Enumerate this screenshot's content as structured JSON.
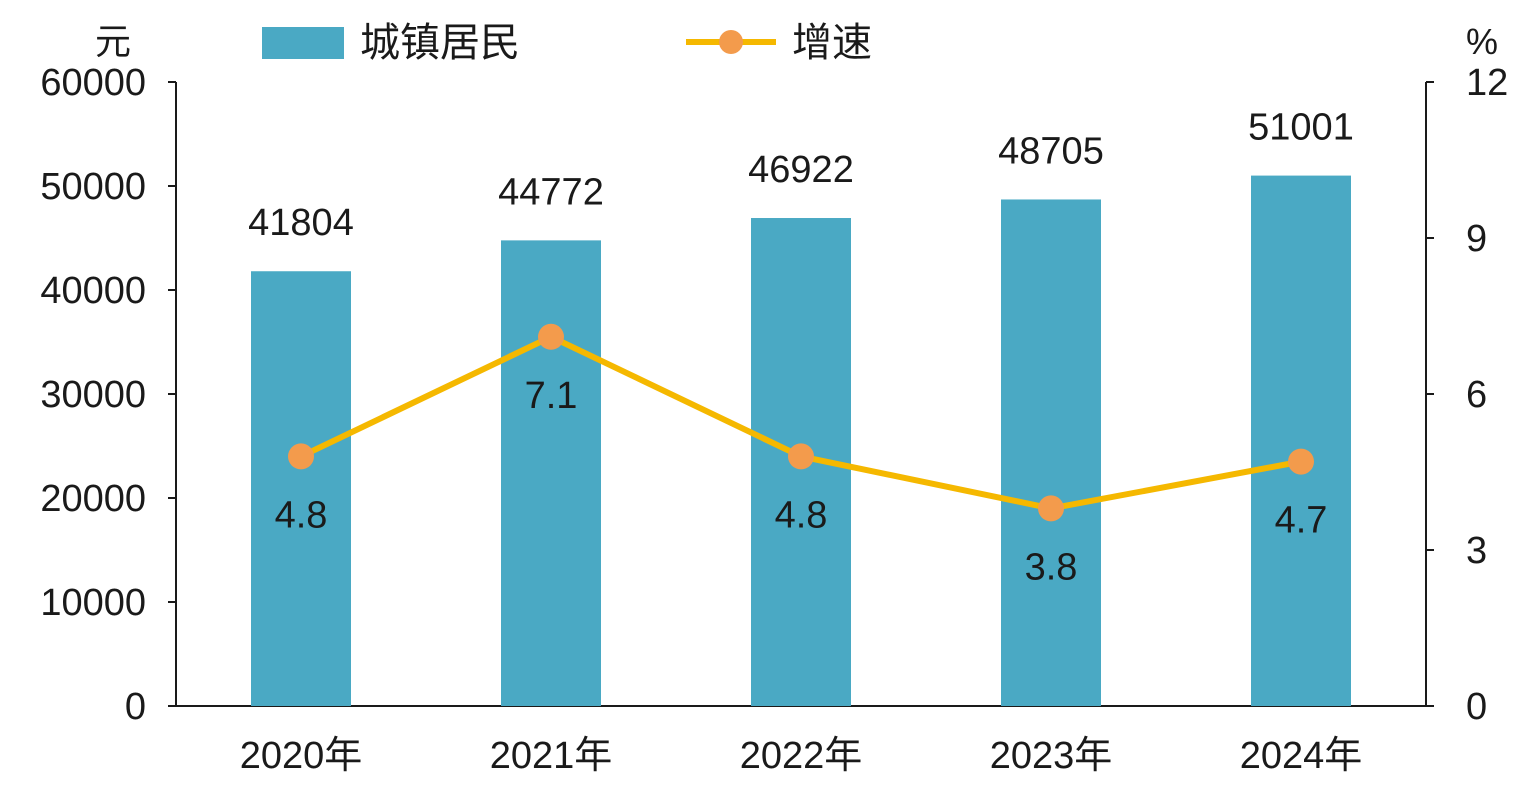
{
  "chart_data": {
    "type": "bar",
    "title": "",
    "categories": [
      "2020年",
      "2021年",
      "2022年",
      "2023年",
      "2024年"
    ],
    "series": [
      {
        "name": "城镇居民",
        "type": "bar",
        "axis": "left",
        "color": "#4aa9c4",
        "values": [
          41804,
          44772,
          46922,
          48705,
          51001
        ],
        "labels": [
          "41804",
          "44772",
          "46922",
          "48705",
          "51001"
        ]
      },
      {
        "name": "增速",
        "type": "line",
        "axis": "right",
        "color": "#f5b800",
        "marker_color": "#f39b4c",
        "values": [
          4.8,
          7.1,
          4.8,
          3.8,
          4.7
        ],
        "labels": [
          "4.8",
          "7.1",
          "4.8",
          "3.8",
          "4.7"
        ]
      }
    ],
    "y_left": {
      "unit": "元",
      "range": [
        0,
        60000
      ],
      "ticks": [
        "0",
        "10000",
        "20000",
        "30000",
        "40000",
        "50000",
        "60000"
      ]
    },
    "y_right": {
      "unit": "%",
      "range": [
        0,
        12
      ],
      "ticks": [
        "0",
        "3",
        "6",
        "9",
        "12"
      ]
    },
    "grid": false,
    "legend_position": "top-center"
  }
}
